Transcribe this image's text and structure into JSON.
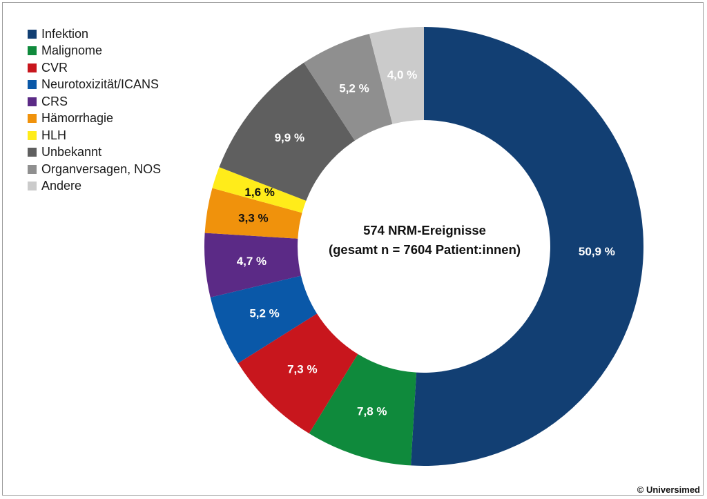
{
  "chart_data": {
    "type": "pie",
    "subtype": "donut",
    "center_title": "574 NRM-Ereignisse",
    "center_subtitle": "(gesamt n = 7604 Patient:innen)",
    "legend_position": "top-left",
    "start_angle_deg": 0,
    "direction": "clockwise",
    "slices": [
      {
        "name": "Infektion",
        "value": 50.9,
        "label": "50,9 %",
        "color": "#123f73",
        "label_color": "#ffffff"
      },
      {
        "name": "Malignome",
        "value": 7.8,
        "label": "7,8 %",
        "color": "#0f8a3c",
        "label_color": "#ffffff"
      },
      {
        "name": "CVR",
        "value": 7.3,
        "label": "7,3 %",
        "color": "#c8161d",
        "label_color": "#ffffff"
      },
      {
        "name": "Neurotoxizität/ICANS",
        "value": 5.2,
        "label": "5,2 %",
        "color": "#0a58a8",
        "label_color": "#ffffff"
      },
      {
        "name": "CRS",
        "value": 4.7,
        "label": "4,7 %",
        "color": "#5b2a86",
        "label_color": "#ffffff"
      },
      {
        "name": "Hämorrhagie",
        "value": 3.3,
        "label": "3,3 %",
        "color": "#f0920c",
        "label_color": "#111111"
      },
      {
        "name": "HLH",
        "value": 1.6,
        "label": "1,6 %",
        "color": "#ffec1a",
        "label_color": "#111111"
      },
      {
        "name": "Unbekannt",
        "value": 9.9,
        "label": "9,9 %",
        "color": "#5f5f5f",
        "label_color": "#ffffff"
      },
      {
        "name": "Organversagen, NOS",
        "value": 5.2,
        "label": "5,2 %",
        "color": "#8f8f8f",
        "label_color": "#ffffff"
      },
      {
        "name": "Andere",
        "value": 4.0,
        "label": "4,0 %",
        "color": "#cbcbcb",
        "label_color": "#ffffff"
      }
    ]
  },
  "credit": "© Universimed"
}
